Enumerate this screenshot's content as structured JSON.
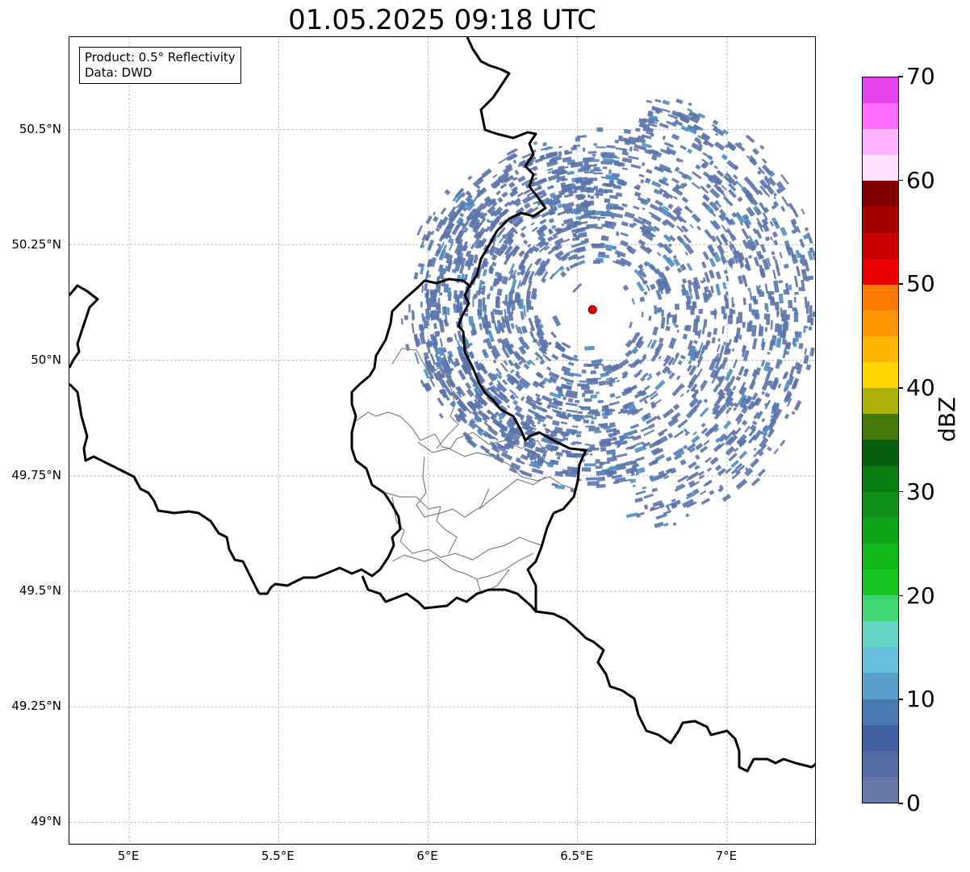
{
  "title": "01.05.2025 09:18 UTC",
  "info_box": {
    "line1": "Product: 0.5° Reflectivity",
    "line2": "Data: DWD"
  },
  "axes": {
    "lat_ticks": [
      "50.5°N",
      "50.25°N",
      "50°N",
      "49.75°N",
      "49.5°N",
      "49.25°N",
      "49°N"
    ],
    "lat_values": [
      50.5,
      50.25,
      50.0,
      49.75,
      49.5,
      49.25,
      49.0
    ],
    "lon_ticks": [
      "5°E",
      "5.5°E",
      "6°E",
      "6.5°E",
      "7°E"
    ],
    "lon_values": [
      5.0,
      5.5,
      6.0,
      6.5,
      7.0
    ],
    "lon_range": [
      4.8,
      7.3
    ],
    "lat_range": [
      48.95,
      50.7
    ]
  },
  "radar_site": {
    "lon": 6.55,
    "lat": 50.11,
    "color": "#e00000"
  },
  "colorbar": {
    "label": "dBZ",
    "ticks": [
      "0",
      "10",
      "20",
      "30",
      "40",
      "50",
      "60",
      "70"
    ],
    "tick_values": [
      0,
      10,
      20,
      30,
      40,
      50,
      60,
      70
    ],
    "range": [
      0,
      70
    ],
    "colors": [
      "#6578a8",
      "#556aa2",
      "#4460a4",
      "#4a78b0",
      "#58a0c8",
      "#66c0da",
      "#66d6c4",
      "#3fd674",
      "#18c420",
      "#10b818",
      "#10a418",
      "#10901a",
      "#0a7c14",
      "#066010",
      "#467a0a",
      "#aab20a",
      "#ffd600",
      "#ffb400",
      "#ff9600",
      "#ff7a00",
      "#e80000",
      "#c80000",
      "#a40000",
      "#820000",
      "#ffe0ff",
      "#ffb4ff",
      "#ff6cff",
      "#e842f0"
    ]
  },
  "colors": {
    "reflectivity_low": "#5b73aa",
    "reflectivity_mid": "#4f8ec2",
    "border": "#000000",
    "admin_border": "#808080",
    "grid": "#b0b0b0"
  }
}
